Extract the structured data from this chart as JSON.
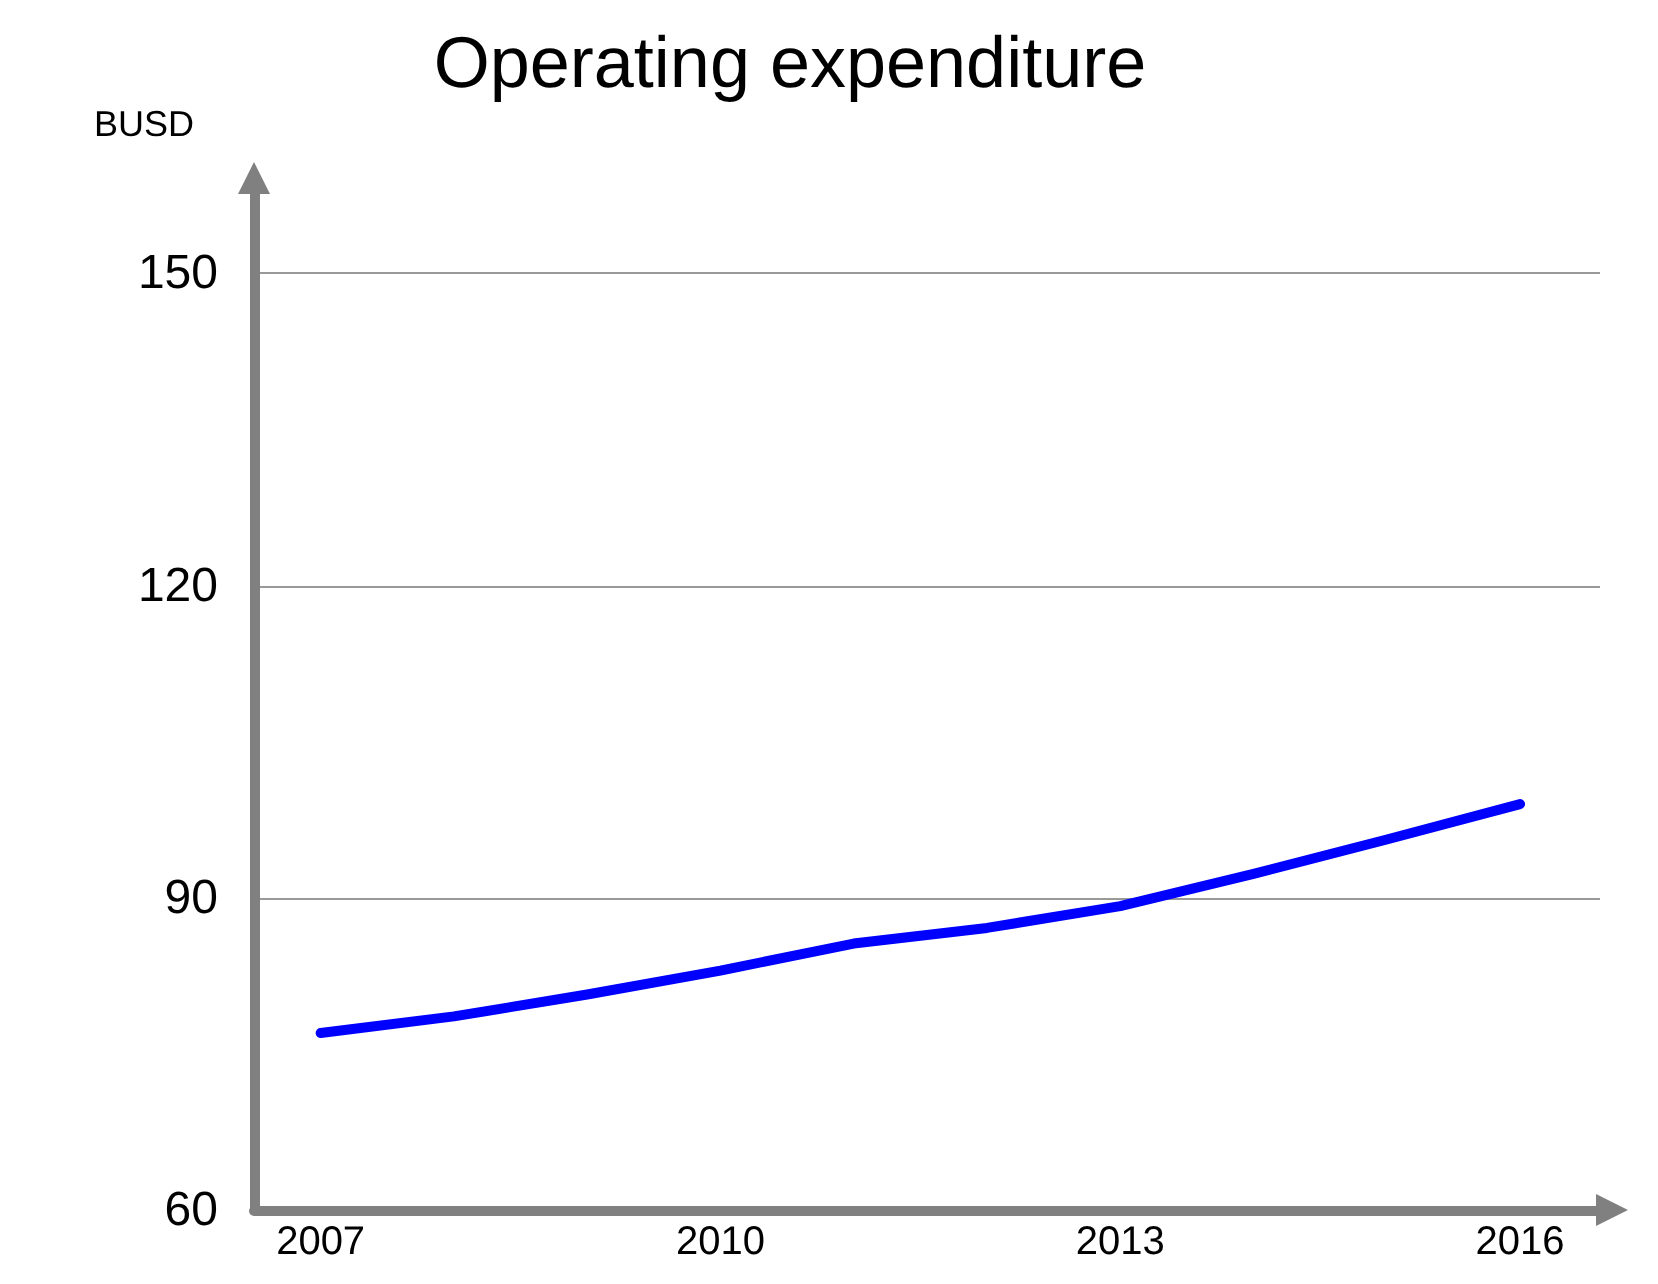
{
  "chart_data": {
    "type": "line",
    "title": "Operating expenditure",
    "ylabel": "BUSD",
    "x": [
      2007,
      2008,
      2009,
      2010,
      2011,
      2012,
      2013,
      2014,
      2015,
      2016
    ],
    "series": [
      {
        "color": "#0000ff",
        "values": [
          77,
          78.6,
          80.7,
          83,
          85.6,
          87.1,
          89.2,
          92.3,
          95.6,
          99
        ]
      }
    ],
    "xlim": [
      2006.5,
      2016.6
    ],
    "xticks": [
      2007,
      2010,
      2013,
      2016
    ],
    "ylim": [
      60,
      158
    ],
    "yticks": [
      60,
      90,
      120,
      150
    ],
    "grid": "y",
    "marker": "none",
    "line_style": "solid"
  }
}
